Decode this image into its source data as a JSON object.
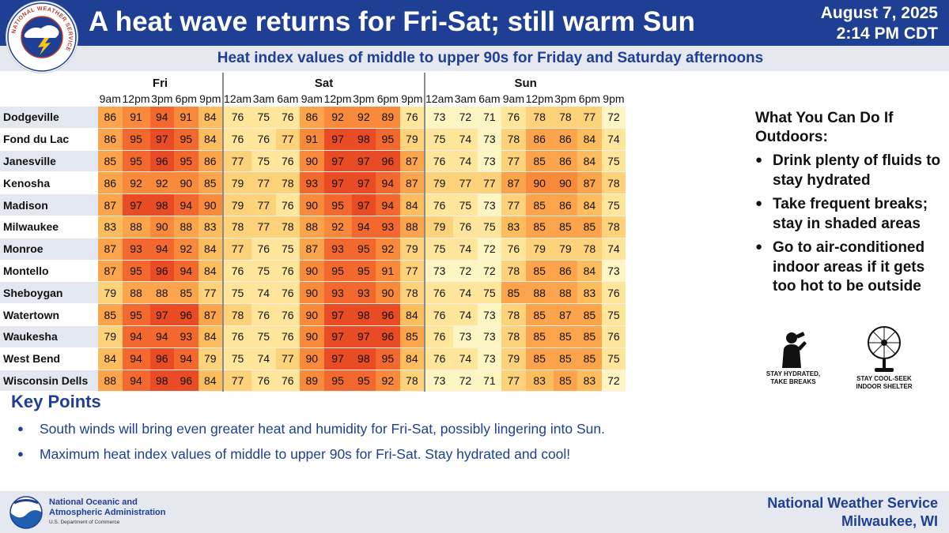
{
  "header": {
    "title": "A heat wave returns for Fri-Sat; still warm Sun",
    "date": "August 7, 2025",
    "time": "2:14 PM CDT",
    "logo_text": "NATIONAL WEATHER SERVICE"
  },
  "subtitle": "Heat index values of middle to upper 90s for Friday and Saturday afternoons",
  "table": {
    "days": [
      {
        "label": "Fri",
        "times": [
          "9am",
          "12pm",
          "3pm",
          "6pm",
          "9pm"
        ]
      },
      {
        "label": "Sat",
        "times": [
          "12am",
          "3am",
          "6am",
          "9am",
          "12pm",
          "3pm",
          "6pm",
          "9pm"
        ]
      },
      {
        "label": "Sun",
        "times": [
          "12am",
          "3am",
          "6am",
          "9am",
          "12pm",
          "3pm",
          "6pm",
          "9pm"
        ]
      }
    ],
    "rows": [
      {
        "city": "Dodgeville",
        "values": [
          86,
          91,
          94,
          91,
          84,
          76,
          75,
          76,
          86,
          92,
          92,
          89,
          76,
          73,
          72,
          71,
          76,
          78,
          78,
          77,
          72
        ]
      },
      {
        "city": "Fond du Lac",
        "values": [
          86,
          95,
          97,
          95,
          84,
          76,
          76,
          77,
          91,
          97,
          98,
          95,
          79,
          75,
          74,
          73,
          78,
          86,
          86,
          84,
          74
        ]
      },
      {
        "city": "Janesville",
        "values": [
          85,
          95,
          96,
          95,
          86,
          77,
          75,
          76,
          90,
          97,
          97,
          96,
          87,
          76,
          74,
          73,
          77,
          85,
          86,
          84,
          75
        ]
      },
      {
        "city": "Kenosha",
        "values": [
          86,
          92,
          92,
          90,
          85,
          79,
          77,
          78,
          93,
          97,
          97,
          94,
          87,
          79,
          77,
          77,
          87,
          90,
          90,
          87,
          78
        ]
      },
      {
        "city": "Madison",
        "values": [
          87,
          97,
          98,
          94,
          90,
          79,
          77,
          76,
          90,
          95,
          97,
          94,
          84,
          76,
          75,
          73,
          77,
          85,
          86,
          84,
          75
        ]
      },
      {
        "city": "Milwaukee",
        "values": [
          83,
          88,
          90,
          88,
          83,
          78,
          77,
          78,
          88,
          92,
          94,
          93,
          88,
          79,
          76,
          75,
          83,
          85,
          85,
          85,
          78
        ]
      },
      {
        "city": "Monroe",
        "values": [
          87,
          93,
          94,
          92,
          84,
          77,
          76,
          75,
          87,
          93,
          95,
          92,
          79,
          75,
          74,
          72,
          76,
          79,
          79,
          78,
          74
        ]
      },
      {
        "city": "Montello",
        "values": [
          87,
          95,
          96,
          94,
          84,
          76,
          75,
          76,
          90,
          95,
          95,
          91,
          77,
          73,
          72,
          72,
          78,
          85,
          86,
          84,
          73
        ]
      },
      {
        "city": "Sheboygan",
        "values": [
          79,
          88,
          88,
          85,
          77,
          75,
          74,
          76,
          90,
          93,
          93,
          90,
          78,
          76,
          74,
          75,
          85,
          88,
          88,
          83,
          76
        ]
      },
      {
        "city": "Watertown",
        "values": [
          85,
          95,
          97,
          96,
          87,
          78,
          76,
          76,
          90,
          97,
          98,
          96,
          84,
          76,
          74,
          73,
          78,
          85,
          87,
          85,
          75
        ]
      },
      {
        "city": "Waukesha",
        "values": [
          79,
          94,
          94,
          93,
          84,
          76,
          75,
          76,
          90,
          97,
          97,
          96,
          85,
          76,
          73,
          73,
          78,
          85,
          85,
          85,
          76
        ]
      },
      {
        "city": "West Bend",
        "values": [
          84,
          94,
          96,
          94,
          79,
          75,
          74,
          77,
          90,
          97,
          98,
          95,
          84,
          76,
          74,
          73,
          79,
          85,
          85,
          85,
          75
        ]
      },
      {
        "city": "Wisconsin Dells",
        "values": [
          88,
          94,
          98,
          96,
          84,
          77,
          76,
          76,
          89,
          95,
          95,
          92,
          78,
          73,
          72,
          71,
          77,
          83,
          85,
          83,
          72
        ]
      }
    ]
  },
  "colors": {
    "navy": "#1f3f95",
    "scale": [
      "#fff5c2",
      "#ffe69a",
      "#fed27a",
      "#fdbd5e",
      "#fca44c",
      "#f98a3c",
      "#f2682e",
      "#e94b24"
    ]
  },
  "panel": {
    "title": "What You Can Do If Outdoors:",
    "items": [
      "Drink plenty of fluids to stay hydrated",
      "Take frequent breaks; stay in shaded areas",
      "Go to air-conditioned indoor areas if it gets too hot to be outside"
    ],
    "icon1": {
      "name": "person-drinking-icon",
      "caption1": "STAY HYDRATED,",
      "caption2": "TAKE BREAKS"
    },
    "icon2": {
      "name": "fan-icon",
      "caption1": "STAY COOL-SEEK",
      "caption2": "INDOOR SHELTER"
    }
  },
  "key_points": {
    "heading": "Key Points",
    "items": [
      "South winds will bring even greater heat and humidity for Fri-Sat, possibly lingering into Sun.",
      "Maximum heat index values of middle to upper 90s for Fri-Sat. Stay hydrated and cool!"
    ]
  },
  "footer": {
    "noaa_line1": "National Oceanic and",
    "noaa_line2": "Atmospheric Administration",
    "noaa_line3": "U.S. Department of Commerce",
    "nws_line1": "National Weather Service",
    "nws_line2": "Milwaukee, WI"
  }
}
